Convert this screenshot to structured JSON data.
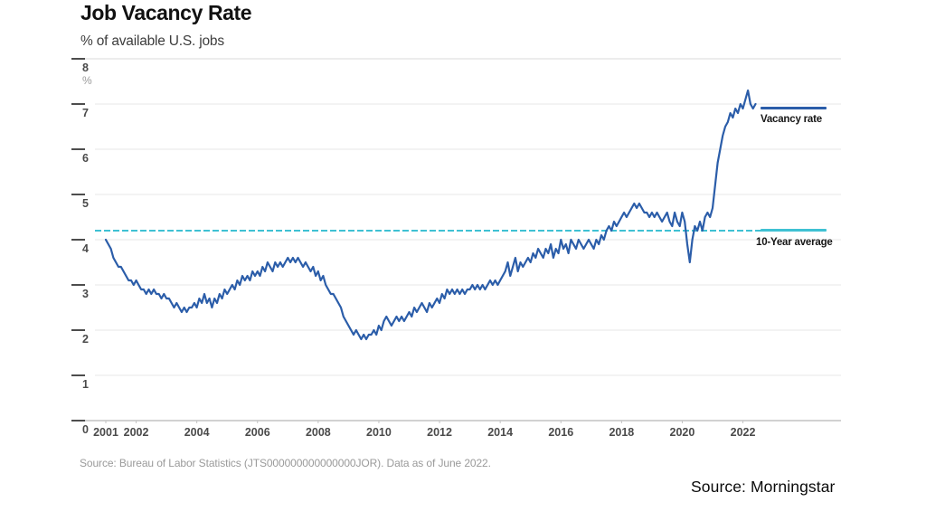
{
  "header": {
    "title": "Job Vacancy Rate",
    "subtitle": "% of available U.S. jobs"
  },
  "footer": {
    "chart_source_note": "Source: Bureau of Labor Statistics (JTS000000000000000JOR). Data as of June 2022.",
    "slide_source": "Source: Morningstar"
  },
  "legend": {
    "vacancy_label": "Vacancy rate",
    "average_label": "10-Year average"
  },
  "chart_data": {
    "type": "line",
    "title": "Job Vacancy Rate",
    "subtitle": "% of available U.S. jobs",
    "x_start": 2001,
    "x_frequency": "monthly",
    "x_end": 2022.4167,
    "axes": {
      "ylim": [
        0,
        8
      ],
      "yticks": [
        0,
        1,
        2,
        3,
        4,
        5,
        6,
        7,
        8
      ],
      "y_unit": "%",
      "xticks": [
        2001,
        2002,
        2004,
        2006,
        2008,
        2010,
        2012,
        2014,
        2016,
        2018,
        2020,
        2022
      ],
      "grid": "horizontal"
    },
    "colors": {
      "vacancy_line": "#2b5da9",
      "average_line": "#3fc1d3",
      "gridline": "#e7e7e7",
      "baseline": "#c2c2c2",
      "tick": "#4d4d4d",
      "tick_label": "#4a4a4a"
    },
    "series": [
      {
        "name": "Vacancy rate",
        "style": "solid",
        "values": [
          4.0,
          3.9,
          3.8,
          3.6,
          3.5,
          3.4,
          3.4,
          3.3,
          3.2,
          3.1,
          3.1,
          3.0,
          3.1,
          3.0,
          2.9,
          2.9,
          2.8,
          2.9,
          2.8,
          2.9,
          2.8,
          2.8,
          2.7,
          2.8,
          2.7,
          2.7,
          2.6,
          2.5,
          2.6,
          2.5,
          2.4,
          2.5,
          2.4,
          2.5,
          2.5,
          2.6,
          2.5,
          2.7,
          2.6,
          2.8,
          2.6,
          2.7,
          2.5,
          2.7,
          2.6,
          2.8,
          2.7,
          2.9,
          2.8,
          2.9,
          3.0,
          2.9,
          3.1,
          3.0,
          3.2,
          3.1,
          3.2,
          3.1,
          3.3,
          3.2,
          3.3,
          3.2,
          3.4,
          3.3,
          3.5,
          3.4,
          3.3,
          3.5,
          3.4,
          3.5,
          3.4,
          3.5,
          3.6,
          3.5,
          3.6,
          3.5,
          3.6,
          3.5,
          3.4,
          3.5,
          3.4,
          3.3,
          3.4,
          3.2,
          3.3,
          3.1,
          3.2,
          3.0,
          2.9,
          2.8,
          2.8,
          2.7,
          2.6,
          2.5,
          2.3,
          2.2,
          2.1,
          2.0,
          1.9,
          2.0,
          1.9,
          1.8,
          1.9,
          1.8,
          1.9,
          1.9,
          2.0,
          1.9,
          2.1,
          2.0,
          2.2,
          2.3,
          2.2,
          2.1,
          2.2,
          2.3,
          2.2,
          2.3,
          2.2,
          2.3,
          2.4,
          2.3,
          2.5,
          2.4,
          2.5,
          2.6,
          2.5,
          2.4,
          2.6,
          2.5,
          2.6,
          2.7,
          2.6,
          2.8,
          2.7,
          2.9,
          2.8,
          2.9,
          2.8,
          2.9,
          2.8,
          2.9,
          2.8,
          2.9,
          2.9,
          3.0,
          2.9,
          3.0,
          2.9,
          3.0,
          2.9,
          3.0,
          3.1,
          3.0,
          3.1,
          3.0,
          3.1,
          3.2,
          3.3,
          3.5,
          3.2,
          3.4,
          3.6,
          3.3,
          3.5,
          3.4,
          3.5,
          3.6,
          3.5,
          3.7,
          3.6,
          3.8,
          3.7,
          3.6,
          3.8,
          3.7,
          3.9,
          3.6,
          3.8,
          3.7,
          4.0,
          3.8,
          3.9,
          3.7,
          4.0,
          3.9,
          3.8,
          4.0,
          3.9,
          3.8,
          3.9,
          4.0,
          3.9,
          3.8,
          4.0,
          3.9,
          4.1,
          4.0,
          4.2,
          4.3,
          4.2,
          4.4,
          4.3,
          4.4,
          4.5,
          4.6,
          4.5,
          4.6,
          4.7,
          4.8,
          4.7,
          4.8,
          4.7,
          4.6,
          4.6,
          4.5,
          4.6,
          4.5,
          4.6,
          4.5,
          4.4,
          4.5,
          4.6,
          4.4,
          4.3,
          4.6,
          4.4,
          4.3,
          4.6,
          4.4,
          3.9,
          3.5,
          4.0,
          4.3,
          4.2,
          4.4,
          4.2,
          4.5,
          4.6,
          4.5,
          4.7,
          5.2,
          5.7,
          6.0,
          6.3,
          6.5,
          6.6,
          6.8,
          6.7,
          6.9,
          6.8,
          7.0,
          6.9,
          7.1,
          7.3,
          7.0,
          6.9,
          7.0
        ]
      },
      {
        "name": "10-Year average",
        "style": "dashed",
        "value": 4.2
      }
    ]
  }
}
